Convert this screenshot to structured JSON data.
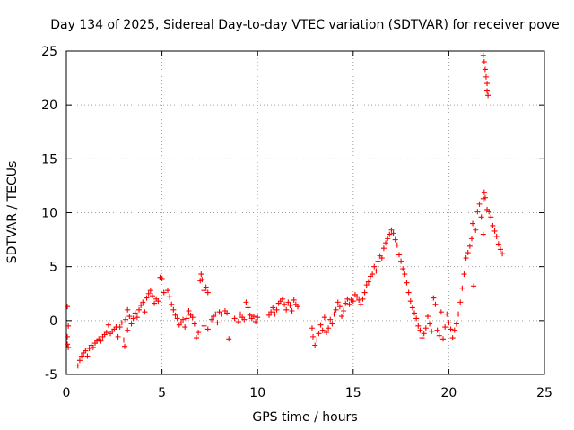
{
  "chart_data": {
    "type": "scatter",
    "title": "Day 134 of 2025, Sidereal Day-to-day VTEC variation (SDTVAR) for receiver pove",
    "xlabel": "GPS time / hours",
    "ylabel": "SDTVAR / TECUs",
    "xlim": [
      0,
      25
    ],
    "ylim": [
      -5,
      25
    ],
    "xticks": [
      0,
      5,
      10,
      15,
      20,
      25
    ],
    "yticks": [
      -5,
      0,
      5,
      10,
      15,
      20,
      25
    ],
    "grid": true,
    "marker": "+",
    "color": "#ff0000",
    "series": [
      {
        "name": "SDTVAR",
        "points": [
          [
            0.05,
            1.3
          ],
          [
            0.05,
            -1.5
          ],
          [
            0.05,
            -2.2
          ],
          [
            0.1,
            -0.5
          ],
          [
            0.1,
            -2.5
          ],
          [
            0.6,
            -4.2
          ],
          [
            0.7,
            -3.7
          ],
          [
            0.8,
            -3.3
          ],
          [
            0.9,
            -3.0
          ],
          [
            1.0,
            -2.8
          ],
          [
            1.1,
            -3.3
          ],
          [
            1.2,
            -2.6
          ],
          [
            1.3,
            -2.3
          ],
          [
            1.4,
            -2.5
          ],
          [
            1.5,
            -2.1
          ],
          [
            1.6,
            -1.9
          ],
          [
            1.7,
            -1.7
          ],
          [
            1.8,
            -1.9
          ],
          [
            1.9,
            -1.5
          ],
          [
            2.0,
            -1.3
          ],
          [
            2.1,
            -1.1
          ],
          [
            2.2,
            -0.4
          ],
          [
            2.3,
            -1.2
          ],
          [
            2.4,
            -1.0
          ],
          [
            2.5,
            -0.8
          ],
          [
            2.6,
            -0.6
          ],
          [
            2.7,
            -1.5
          ],
          [
            2.8,
            -0.6
          ],
          [
            2.9,
            -0.2
          ],
          [
            3.0,
            -1.8
          ],
          [
            3.05,
            -2.4
          ],
          [
            3.1,
            0.1
          ],
          [
            3.2,
            1.0
          ],
          [
            3.2,
            -0.9
          ],
          [
            3.3,
            0.4
          ],
          [
            3.4,
            -0.3
          ],
          [
            3.5,
            0.2
          ],
          [
            3.6,
            0.7
          ],
          [
            3.7,
            0.3
          ],
          [
            3.8,
            1.0
          ],
          [
            3.9,
            1.4
          ],
          [
            4.0,
            1.7
          ],
          [
            4.1,
            0.8
          ],
          [
            4.2,
            2.1
          ],
          [
            4.3,
            2.5
          ],
          [
            4.4,
            2.8
          ],
          [
            4.5,
            2.3
          ],
          [
            4.6,
            1.6
          ],
          [
            4.7,
            2.0
          ],
          [
            4.8,
            1.8
          ],
          [
            4.9,
            4.0
          ],
          [
            5.0,
            3.9
          ],
          [
            5.1,
            2.6
          ],
          [
            5.3,
            2.8
          ],
          [
            5.4,
            2.2
          ],
          [
            5.5,
            1.5
          ],
          [
            5.6,
            1.0
          ],
          [
            5.7,
            0.5
          ],
          [
            5.8,
            0.2
          ],
          [
            5.9,
            -0.4
          ],
          [
            6.0,
            -0.2
          ],
          [
            6.1,
            0.1
          ],
          [
            6.2,
            -0.6
          ],
          [
            6.3,
            0.2
          ],
          [
            6.4,
            0.9
          ],
          [
            6.5,
            0.5
          ],
          [
            6.6,
            0.3
          ],
          [
            6.7,
            -0.3
          ],
          [
            6.8,
            -1.6
          ],
          [
            6.9,
            -1.1
          ],
          [
            7.0,
            3.7
          ],
          [
            7.05,
            4.3
          ],
          [
            7.1,
            3.8
          ],
          [
            7.2,
            2.8
          ],
          [
            7.3,
            3.1
          ],
          [
            7.4,
            2.6
          ],
          [
            7.2,
            -0.5
          ],
          [
            7.4,
            -0.8
          ],
          [
            7.6,
            0.1
          ],
          [
            7.7,
            0.4
          ],
          [
            7.8,
            0.6
          ],
          [
            7.9,
            -0.2
          ],
          [
            8.0,
            0.8
          ],
          [
            8.1,
            0.6
          ],
          [
            8.3,
            0.9
          ],
          [
            8.4,
            0.7
          ],
          [
            8.5,
            -1.7
          ],
          [
            8.8,
            0.2
          ],
          [
            9.0,
            -0.1
          ],
          [
            9.1,
            0.6
          ],
          [
            9.2,
            0.3
          ],
          [
            9.3,
            0.1
          ],
          [
            9.4,
            1.7
          ],
          [
            9.5,
            1.2
          ],
          [
            9.6,
            0.5
          ],
          [
            9.7,
            0.2
          ],
          [
            9.8,
            0.4
          ],
          [
            9.9,
            -0.1
          ],
          [
            10.0,
            0.3
          ],
          [
            10.6,
            0.5
          ],
          [
            10.7,
            0.8
          ],
          [
            10.8,
            1.2
          ],
          [
            10.9,
            0.6
          ],
          [
            11.0,
            1.0
          ],
          [
            11.1,
            1.6
          ],
          [
            11.2,
            1.8
          ],
          [
            11.3,
            2.0
          ],
          [
            11.4,
            1.5
          ],
          [
            11.5,
            1.0
          ],
          [
            11.6,
            1.7
          ],
          [
            11.7,
            1.4
          ],
          [
            11.8,
            0.9
          ],
          [
            11.9,
            1.9
          ],
          [
            12.0,
            1.5
          ],
          [
            12.1,
            1.3
          ],
          [
            12.85,
            -0.7
          ],
          [
            12.9,
            -1.5
          ],
          [
            13.0,
            -2.3
          ],
          [
            13.1,
            -1.8
          ],
          [
            13.2,
            -1.2
          ],
          [
            13.3,
            -0.4
          ],
          [
            13.4,
            -0.9
          ],
          [
            13.5,
            0.3
          ],
          [
            13.6,
            -1.1
          ],
          [
            13.7,
            -0.7
          ],
          [
            13.8,
            0.1
          ],
          [
            13.9,
            -0.3
          ],
          [
            14.0,
            0.6
          ],
          [
            14.1,
            1.0
          ],
          [
            14.2,
            1.7
          ],
          [
            14.3,
            1.3
          ],
          [
            14.4,
            0.4
          ],
          [
            14.5,
            0.9
          ],
          [
            14.6,
            1.6
          ],
          [
            14.7,
            2.0
          ],
          [
            14.8,
            1.5
          ],
          [
            14.9,
            1.9
          ],
          [
            15.0,
            1.8
          ],
          [
            15.1,
            2.4
          ],
          [
            15.2,
            2.2
          ],
          [
            15.3,
            1.9
          ],
          [
            15.4,
            1.5
          ],
          [
            15.5,
            2.0
          ],
          [
            15.6,
            2.6
          ],
          [
            15.7,
            3.3
          ],
          [
            15.8,
            3.6
          ],
          [
            15.9,
            4.1
          ],
          [
            16.0,
            4.3
          ],
          [
            16.1,
            5.0
          ],
          [
            16.2,
            4.6
          ],
          [
            16.3,
            5.5
          ],
          [
            16.4,
            6.0
          ],
          [
            16.5,
            5.8
          ],
          [
            16.6,
            6.7
          ],
          [
            16.7,
            7.2
          ],
          [
            16.8,
            7.6
          ],
          [
            16.9,
            8.0
          ],
          [
            17.0,
            8.4
          ],
          [
            17.1,
            8.1
          ],
          [
            17.2,
            7.5
          ],
          [
            17.3,
            7.0
          ],
          [
            17.4,
            6.1
          ],
          [
            17.5,
            5.5
          ],
          [
            17.6,
            4.8
          ],
          [
            17.7,
            4.3
          ],
          [
            17.8,
            3.5
          ],
          [
            17.9,
            2.6
          ],
          [
            18.0,
            1.8
          ],
          [
            18.1,
            1.2
          ],
          [
            18.2,
            0.7
          ],
          [
            18.3,
            0.2
          ],
          [
            18.4,
            -0.5
          ],
          [
            18.5,
            -0.9
          ],
          [
            18.6,
            -1.6
          ],
          [
            18.7,
            -1.2
          ],
          [
            18.8,
            -0.7
          ],
          [
            18.9,
            0.4
          ],
          [
            19.0,
            -0.3
          ],
          [
            19.1,
            -1.0
          ],
          [
            19.2,
            2.1
          ],
          [
            19.3,
            1.5
          ],
          [
            19.4,
            -0.9
          ],
          [
            19.5,
            -1.4
          ],
          [
            19.6,
            0.8
          ],
          [
            19.7,
            -1.7
          ],
          [
            19.8,
            -0.6
          ],
          [
            19.9,
            0.6
          ],
          [
            20.0,
            -0.2
          ],
          [
            20.1,
            -0.8
          ],
          [
            20.2,
            -1.6
          ],
          [
            20.3,
            -0.9
          ],
          [
            20.4,
            -0.3
          ],
          [
            20.5,
            0.6
          ],
          [
            20.6,
            1.7
          ],
          [
            20.7,
            3.0
          ],
          [
            20.8,
            4.3
          ],
          [
            20.9,
            5.8
          ],
          [
            21.0,
            6.3
          ],
          [
            21.1,
            6.9
          ],
          [
            21.2,
            7.6
          ],
          [
            21.25,
            9.0
          ],
          [
            21.3,
            3.2
          ],
          [
            21.4,
            8.4
          ],
          [
            21.5,
            10.1
          ],
          [
            21.6,
            10.8
          ],
          [
            21.7,
            9.6
          ],
          [
            21.8,
            11.3
          ],
          [
            21.85,
            11.9
          ],
          [
            21.9,
            11.4
          ],
          [
            21.8,
            8.0
          ],
          [
            22.0,
            10.3
          ],
          [
            22.1,
            10.1
          ],
          [
            22.2,
            9.6
          ],
          [
            22.3,
            8.8
          ],
          [
            22.4,
            8.3
          ],
          [
            22.5,
            7.8
          ],
          [
            22.6,
            7.1
          ],
          [
            22.7,
            6.6
          ],
          [
            22.8,
            6.2
          ],
          [
            21.8,
            24.6
          ],
          [
            21.85,
            24.0
          ],
          [
            21.9,
            23.3
          ],
          [
            21.95,
            22.6
          ],
          [
            22.0,
            22.0
          ],
          [
            22.0,
            21.3
          ],
          [
            22.05,
            20.9
          ]
        ]
      }
    ]
  }
}
